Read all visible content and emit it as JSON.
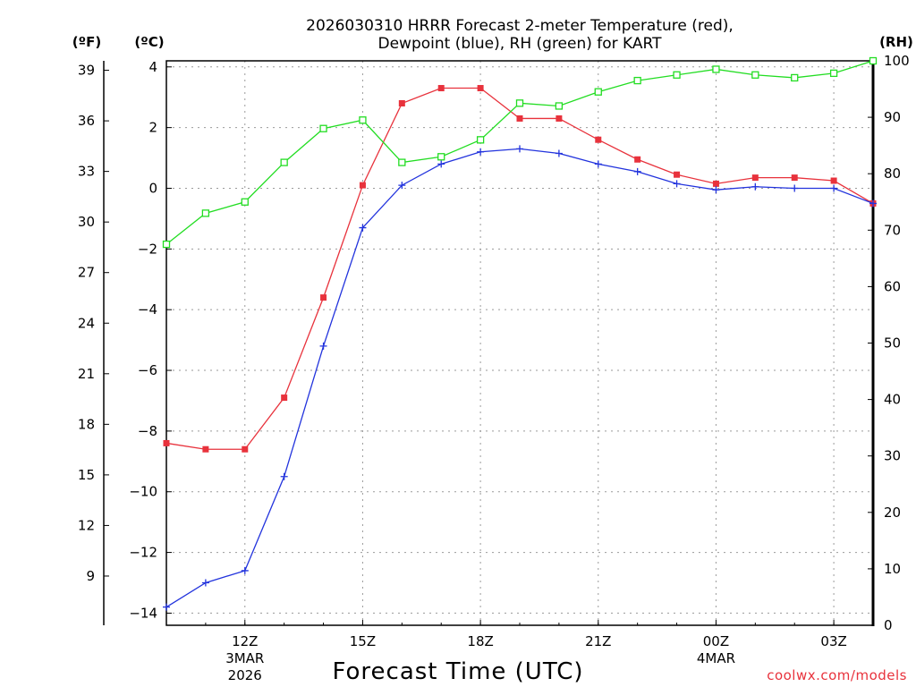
{
  "title_line1": "2026030310 HRRR Forecast 2-meter Temperature (red),",
  "title_line2": "Dewpoint (blue), RH (green) for KART",
  "unit_f": "(ºF)",
  "unit_c": "(ºC)",
  "unit_rh": "(RH)",
  "xlabel": "Forecast Time (UTC)",
  "credit": "coolwx.com/models",
  "chart_data": {
    "type": "line",
    "title": "2026030310 HRRR Forecast 2-meter Temperature (red), Dewpoint (blue), RH (green) for KART",
    "xlabel": "Forecast Time (UTC)",
    "x": [
      "10Z",
      "11Z",
      "12Z",
      "13Z",
      "14Z",
      "15Z",
      "16Z",
      "17Z",
      "18Z",
      "19Z",
      "20Z",
      "21Z",
      "22Z",
      "23Z",
      "00Z",
      "01Z",
      "02Z",
      "03Z",
      "04Z"
    ],
    "xlim": [
      10,
      28
    ],
    "ylim_c": [
      -14.4,
      4.2
    ],
    "ylim_rh": [
      0,
      100
    ],
    "x_ticks": [
      {
        "hour": 12,
        "label": "12Z",
        "sub1": "3MAR",
        "sub2": "2026"
      },
      {
        "hour": 15,
        "label": "15Z",
        "sub1": "",
        "sub2": ""
      },
      {
        "hour": 18,
        "label": "18Z",
        "sub1": "",
        "sub2": ""
      },
      {
        "hour": 21,
        "label": "21Z",
        "sub1": "",
        "sub2": ""
      },
      {
        "hour": 24,
        "label": "00Z",
        "sub1": "4MAR",
        "sub2": ""
      },
      {
        "hour": 27,
        "label": "03Z",
        "sub1": "",
        "sub2": ""
      }
    ],
    "y_ticks_c": [
      4,
      2,
      0,
      -2,
      -4,
      -6,
      -8,
      -10,
      -12,
      -14
    ],
    "y_ticks_f": [
      39,
      36,
      33,
      30,
      27,
      24,
      21,
      18,
      15,
      12,
      9
    ],
    "y_ticks_rh": [
      100,
      90,
      80,
      70,
      60,
      50,
      40,
      30,
      20,
      10,
      0
    ],
    "series": [
      {
        "name": "Temperature",
        "axis": "c",
        "color": "#e8323c",
        "marker": "filled-square",
        "values": [
          -8.4,
          -8.6,
          -8.6,
          -6.9,
          -3.6,
          0.1,
          2.8,
          3.3,
          3.3,
          2.3,
          2.3,
          1.6,
          0.95,
          0.45,
          0.15,
          0.35,
          0.35,
          0.25,
          -0.5
        ]
      },
      {
        "name": "Dewpoint",
        "axis": "c",
        "color": "#2233dd",
        "marker": "plus",
        "values": [
          -13.8,
          -13.0,
          -12.6,
          -9.5,
          -5.2,
          -1.3,
          0.1,
          0.8,
          1.2,
          1.3,
          1.15,
          0.8,
          0.55,
          0.15,
          -0.05,
          0.05,
          0.0,
          0.0,
          -0.5
        ]
      },
      {
        "name": "RH",
        "axis": "rh",
        "color": "#22dd22",
        "marker": "open-square",
        "values": [
          67.5,
          73,
          75,
          82,
          88,
          89.5,
          82,
          83,
          86,
          92.5,
          92,
          94.5,
          96.5,
          97.5,
          98.5,
          97.5,
          97,
          97.8,
          100
        ]
      }
    ]
  }
}
